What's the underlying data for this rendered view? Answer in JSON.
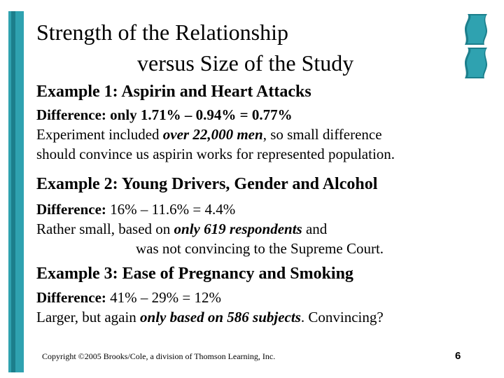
{
  "title": {
    "line1": "Strength of the Relationship",
    "line2": "versus Size of the Study"
  },
  "example1": {
    "heading": "Example 1: Aspirin and Heart Attacks",
    "difference": "Difference: only 1.71% – 0.94% = 0.77%",
    "text_a": "Experiment included ",
    "text_b": "over 22,000 men",
    "text_c": ", so small difference",
    "text_d": "should convince us aspirin works for represented population."
  },
  "example2": {
    "heading": "Example 2: Young Drivers, Gender and Alcohol",
    "difference_label": "Difference:",
    "difference_value": " 16% – 11.6% = 4.4%",
    "text_a": "Rather small, based on ",
    "text_b": "only 619 respondents",
    "text_c": " and",
    "text_d": "was not convincing to the Supreme Court."
  },
  "example3": {
    "heading": "Example 3: Ease of Pregnancy and Smoking",
    "difference_label": "Difference:",
    "difference_value": " 41% – 29% = 12%",
    "text_a": "Larger, but again ",
    "text_b": "only based on 586 subjects",
    "text_c": ". Convincing?"
  },
  "footer": {
    "copyright": "Copyright ©2005 Brooks/Cole, a division of Thomson Learning, Inc.",
    "page_number": "6"
  },
  "colors": {
    "accent_teal": "#2fa2b0",
    "accent_dark_teal": "#1c7f8c"
  }
}
